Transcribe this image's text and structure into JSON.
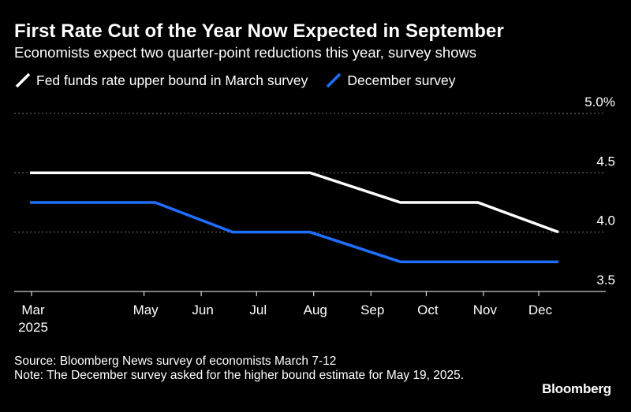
{
  "title": "First Rate Cut of the Year Now Expected in September",
  "subtitle": "Economists expect two quarter-point reductions this year, survey shows",
  "source": "Source: Bloomberg News survey of economists March 7-12",
  "note": "Note: The December survey asked for the higher bound estimate for May 19, 2025.",
  "brand": "Bloomberg",
  "colors": {
    "background": "#000000",
    "march": "#ffffff",
    "december": "#1f6fff",
    "grid": "#777777"
  },
  "chart_data": {
    "type": "line",
    "x": [
      "2025-03-19",
      "2025-05-07",
      "2025-06-18",
      "2025-07-30",
      "2025-09-17",
      "2025-10-29",
      "2025-12-10"
    ],
    "x_ticks": [
      {
        "label": "Mar",
        "sub": "2025",
        "date": "2025-03-01"
      },
      {
        "label": "May",
        "date": "2025-05-01"
      },
      {
        "label": "Jun",
        "date": "2025-06-01"
      },
      {
        "label": "Jul",
        "date": "2025-07-01"
      },
      {
        "label": "Aug",
        "date": "2025-08-01"
      },
      {
        "label": "Sep",
        "date": "2025-09-01"
      },
      {
        "label": "Oct",
        "date": "2025-10-01"
      },
      {
        "label": "Nov",
        "date": "2025-11-01"
      },
      {
        "label": "Dec",
        "date": "2025-12-01"
      }
    ],
    "y_ticks": [
      "5.0%",
      "4.5",
      "4.0",
      "3.5"
    ],
    "y_tick_values": [
      5.0,
      4.5,
      4.0,
      3.5
    ],
    "ylim": [
      3.5,
      5.0
    ],
    "grid": true,
    "legend_position": "top-left",
    "series": [
      {
        "name": "Fed funds rate upper bound in March survey",
        "color": "#ffffff",
        "values": [
          4.5,
          4.5,
          4.5,
          4.5,
          4.25,
          4.25,
          4.0
        ]
      },
      {
        "name": "December survey",
        "color": "#1f6fff",
        "values": [
          4.25,
          4.25,
          4.0,
          4.0,
          3.75,
          3.75,
          3.75
        ]
      }
    ]
  }
}
